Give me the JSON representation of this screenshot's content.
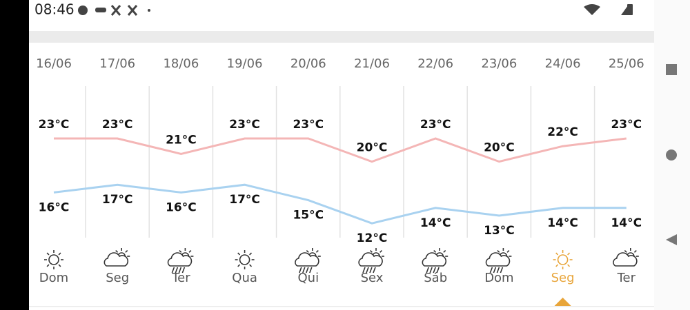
{
  "status_bar": {
    "time": "08:46"
  },
  "chart_data": {
    "type": "line",
    "categories": [
      "16/06",
      "17/06",
      "18/06",
      "19/06",
      "20/06",
      "21/06",
      "22/06",
      "23/06",
      "24/06",
      "25/06"
    ],
    "days": [
      "Dom",
      "Seg",
      "Ter",
      "Qua",
      "Qui",
      "Sex",
      "Sáb",
      "Dom",
      "Seg",
      "Ter"
    ],
    "selected": 8,
    "highlight_color": "#e8a53a",
    "series": [
      {
        "color": "#f4b6b6",
        "values": [
          23,
          23,
          21,
          23,
          23,
          20,
          23,
          20,
          22,
          23
        ],
        "value_labels": [
          "23°C",
          "23°C",
          "21°C",
          "23°C",
          "23°C",
          "20°C",
          "23°C",
          "20°C",
          "22°C",
          "23°C"
        ]
      },
      {
        "color": "#a9d2f0",
        "values": [
          16,
          17,
          16,
          17,
          15,
          12,
          14,
          13,
          14,
          14
        ],
        "value_labels": [
          "16°C",
          "17°C",
          "16°C",
          "17°C",
          "15°C",
          "12°C",
          "14°C",
          "13°C",
          "14°C",
          "14°C"
        ]
      }
    ]
  }
}
